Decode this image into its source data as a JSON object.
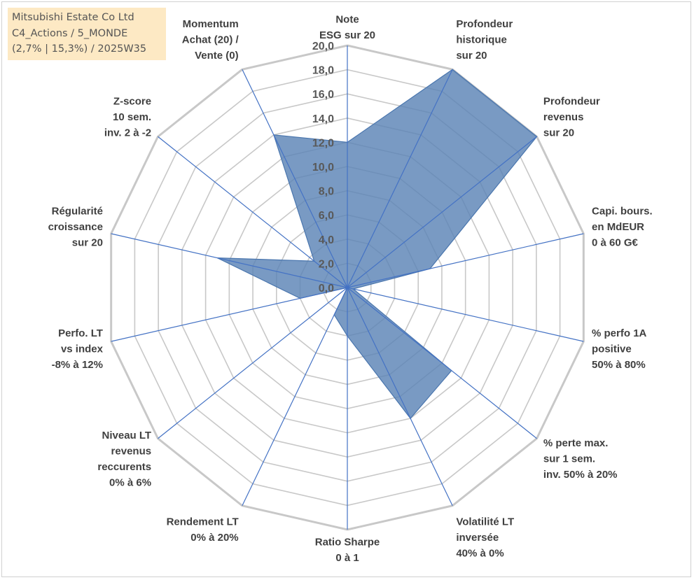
{
  "chart_data": {
    "type": "radar",
    "title_lines": [
      "Mitsubishi Estate Co Ltd",
      "C4_Actions / 5_MONDE",
      "(2,7% | 15,3%) / 2025W35"
    ],
    "axes": [
      {
        "label": [
          "Note",
          "ESG sur 20"
        ]
      },
      {
        "label": [
          "Profondeur",
          "historique",
          "sur 20"
        ]
      },
      {
        "label": [
          "Profondeur",
          "revenus",
          "sur 20"
        ]
      },
      {
        "label": [
          "Capi. bours.",
          "en MdEUR",
          "0 à 60 G€"
        ]
      },
      {
        "label": [
          "% perfo 1A",
          "positive",
          "50% à 80%"
        ]
      },
      {
        "label": [
          "% perte max.",
          "sur 1 sem.",
          "inv. 50% à 20%"
        ]
      },
      {
        "label": [
          "Volatilité LT",
          "inversée",
          "40% à 0%"
        ]
      },
      {
        "label": [
          "Ratio Sharpe",
          "0 à 1"
        ]
      },
      {
        "label": [
          "Rendement LT",
          "0% à 20%"
        ]
      },
      {
        "label": [
          "Niveau LT",
          "revenus",
          "reccurents",
          "0% à 6%"
        ]
      },
      {
        "label": [
          "Perfo. LT",
          "vs index",
          "-8% à 12%"
        ]
      },
      {
        "label": [
          "Régularité",
          "croissance",
          "sur 20"
        ]
      },
      {
        "label": [
          "Z-score",
          "10 sem.",
          "inv. 2 à -2"
        ]
      },
      {
        "label": [
          "Momentum",
          "Achat (20) /",
          "Vente (0)"
        ]
      }
    ],
    "series": [
      {
        "values": [
          12.0,
          20.0,
          20.0,
          7.0,
          0.5,
          11.0,
          12.0,
          4.0,
          2.5,
          0.0,
          4.0,
          11.0,
          3.5,
          14.0
        ]
      }
    ],
    "ticks": [
      "0,0",
      "2,0",
      "4,0",
      "6,0",
      "8,0",
      "10,0",
      "12,0",
      "14,0",
      "16,0",
      "18,0",
      "20,0"
    ],
    "rlim": [
      0,
      20
    ],
    "grid": true,
    "colors": {
      "fill": "#5b84b6",
      "outline": "#4a76ae",
      "grid": "#c8c8c8",
      "spoke": "#4472c4",
      "title_bg": "#fde9c4"
    }
  }
}
